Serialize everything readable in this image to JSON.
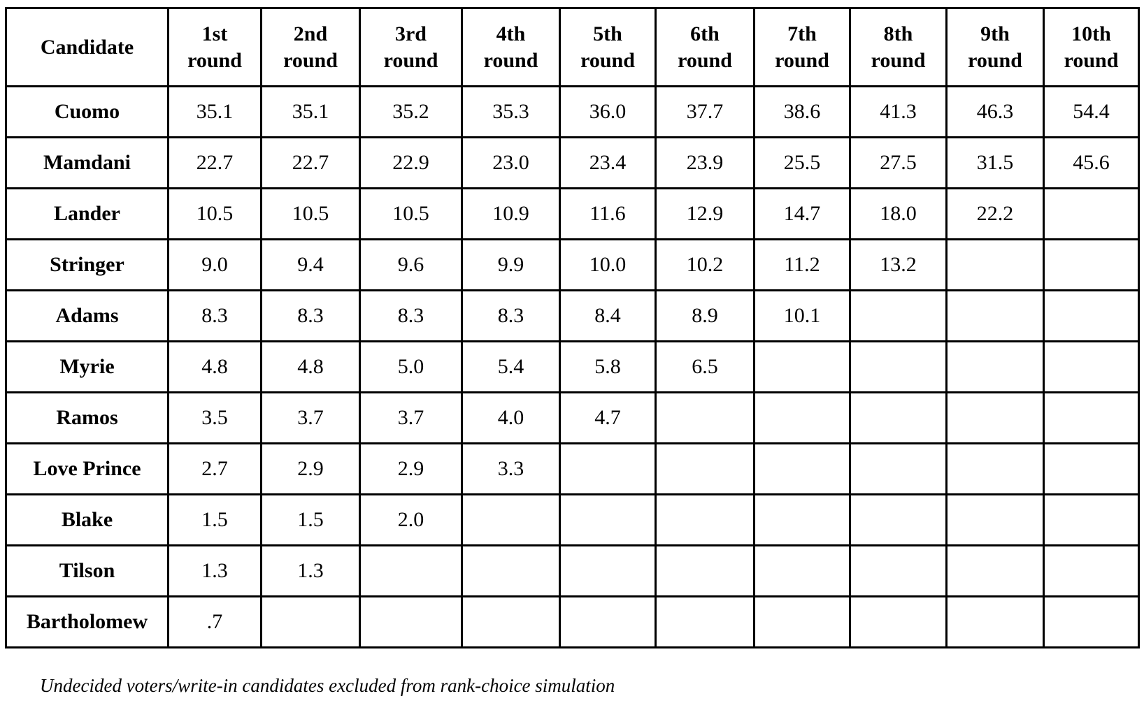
{
  "table": {
    "header": [
      "Candidate",
      "1st round",
      "2nd round",
      "3rd round",
      "4th round",
      "5th round",
      "6th round",
      "7th round",
      "8th round",
      "9th round",
      "10th round"
    ],
    "rows": [
      {
        "candidate": "Cuomo",
        "values": [
          "35.1",
          "35.1",
          "35.2",
          "35.3",
          "36.0",
          "37.7",
          "38.6",
          "41.3",
          "46.3",
          "54.4"
        ]
      },
      {
        "candidate": "Mamdani",
        "values": [
          "22.7",
          "22.7",
          "22.9",
          "23.0",
          "23.4",
          "23.9",
          "25.5",
          "27.5",
          "31.5",
          "45.6"
        ]
      },
      {
        "candidate": "Lander",
        "values": [
          "10.5",
          "10.5",
          "10.5",
          "10.9",
          "11.6",
          "12.9",
          "14.7",
          "18.0",
          "22.2",
          null
        ]
      },
      {
        "candidate": "Stringer",
        "values": [
          "9.0",
          "9.4",
          "9.6",
          "9.9",
          "10.0",
          "10.2",
          "11.2",
          "13.2",
          null,
          null
        ]
      },
      {
        "candidate": "Adams",
        "values": [
          "8.3",
          "8.3",
          "8.3",
          "8.3",
          "8.4",
          "8.9",
          "10.1",
          null,
          null,
          null
        ]
      },
      {
        "candidate": "Myrie",
        "values": [
          "4.8",
          "4.8",
          "5.0",
          "5.4",
          "5.8",
          "6.5",
          null,
          null,
          null,
          null
        ]
      },
      {
        "candidate": "Ramos",
        "values": [
          "3.5",
          "3.7",
          "3.7",
          "4.0",
          "4.7",
          null,
          null,
          null,
          null,
          null
        ]
      },
      {
        "candidate": "Love Prince",
        "values": [
          "2.7",
          "2.9",
          "2.9",
          "3.3",
          null,
          null,
          null,
          null,
          null,
          null
        ]
      },
      {
        "candidate": "Blake",
        "values": [
          "1.5",
          "1.5",
          "2.0",
          null,
          null,
          null,
          null,
          null,
          null,
          null
        ]
      },
      {
        "candidate": "Tilson",
        "values": [
          "1.3",
          "1.3",
          null,
          null,
          null,
          null,
          null,
          null,
          null,
          null
        ]
      },
      {
        "candidate": "Bartholomew",
        "values": [
          ".7",
          null,
          null,
          null,
          null,
          null,
          null,
          null,
          null,
          null
        ]
      }
    ]
  },
  "footnote": "Undecided voters/write-in candidates excluded from rank-choice simulation"
}
